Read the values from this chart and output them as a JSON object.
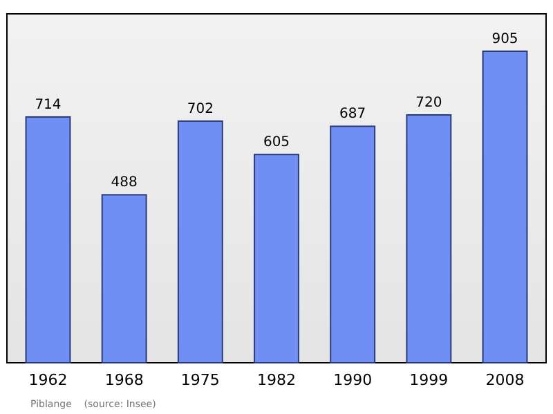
{
  "chart_data": {
    "type": "bar",
    "categories": [
      "1962",
      "1968",
      "1975",
      "1982",
      "1990",
      "1999",
      "2008"
    ],
    "values": [
      714,
      488,
      702,
      605,
      687,
      720,
      905
    ],
    "color": "#6f8ff5",
    "data_labels": true,
    "annotations": [
      "Piblange    (source: Insee)"
    ]
  }
}
